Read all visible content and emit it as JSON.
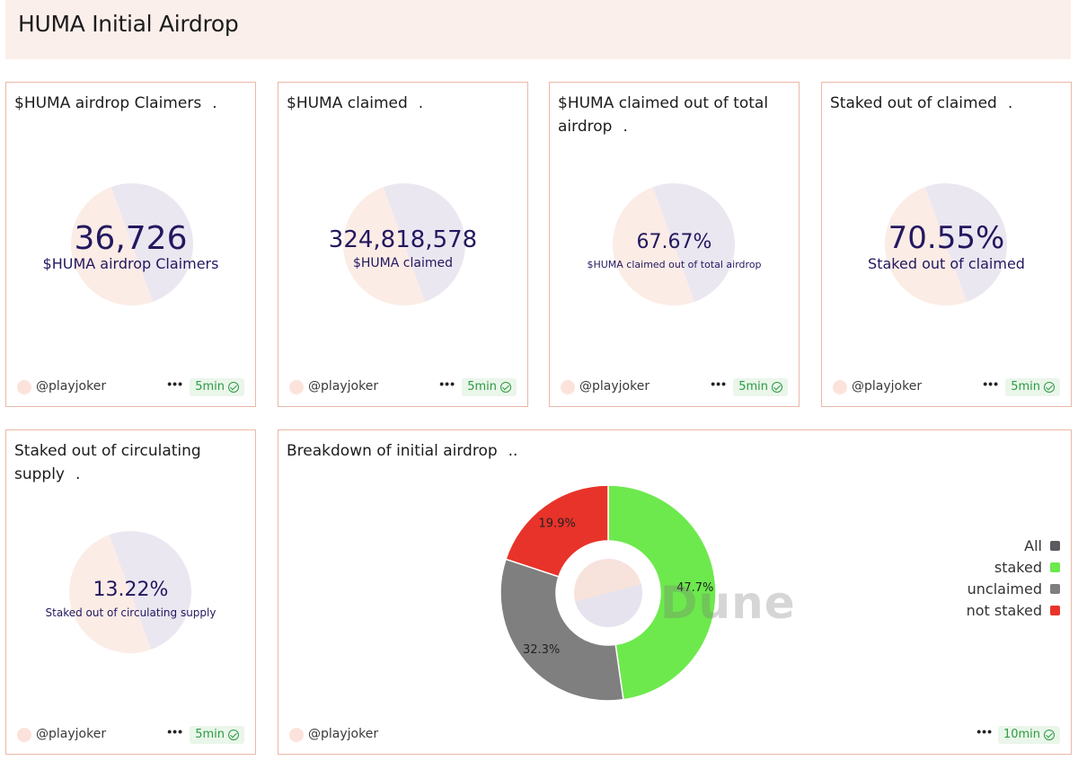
{
  "header": {
    "title": "HUMA Initial Airdrop"
  },
  "cards": [
    {
      "title": "$HUMA airdrop Claimers",
      "value": "36,726",
      "label": "$HUMA airdrop Claimers",
      "author": "@playjoker",
      "refresh": "5min"
    },
    {
      "title": "$HUMA claimed",
      "value": "324,818,578",
      "label": "$HUMA claimed",
      "author": "@playjoker",
      "refresh": "5min"
    },
    {
      "title": "$HUMA claimed out of total airdrop",
      "value": "67.67%",
      "label": "$HUMA claimed out of total airdrop",
      "author": "@playjoker",
      "refresh": "5min"
    },
    {
      "title": "Staked out of claimed",
      "value": "70.55%",
      "label": "Staked out of claimed",
      "author": "@playjoker",
      "refresh": "5min"
    },
    {
      "title": "Staked out of circulating supply",
      "value": "13.22%",
      "label": "Staked out of circulating supply",
      "author": "@playjoker",
      "refresh": "5min"
    }
  ],
  "breakdown": {
    "title": "Breakdown of initial airdrop",
    "author": "@playjoker",
    "refresh": "10min",
    "watermark": "Dune"
  },
  "more_label": "•••",
  "chart_data": {
    "type": "pie",
    "title": "Breakdown of initial airdrop",
    "legend_placement": "right",
    "legend": [
      {
        "name": "All",
        "color": "#5b5b5f"
      },
      {
        "name": "staked",
        "color": "#6de94d"
      },
      {
        "name": "unclaimed",
        "color": "#7f7f7f"
      },
      {
        "name": "not staked",
        "color": "#e8332a"
      }
    ],
    "slices": [
      {
        "name": "staked",
        "value": 47.7,
        "label": "47.7%",
        "color": "#6de94d"
      },
      {
        "name": "unclaimed",
        "value": 32.3,
        "label": "32.3%",
        "color": "#7f7f7f"
      },
      {
        "name": "not staked",
        "value": 19.9,
        "label": "19.9%",
        "color": "#e8332a"
      }
    ]
  }
}
